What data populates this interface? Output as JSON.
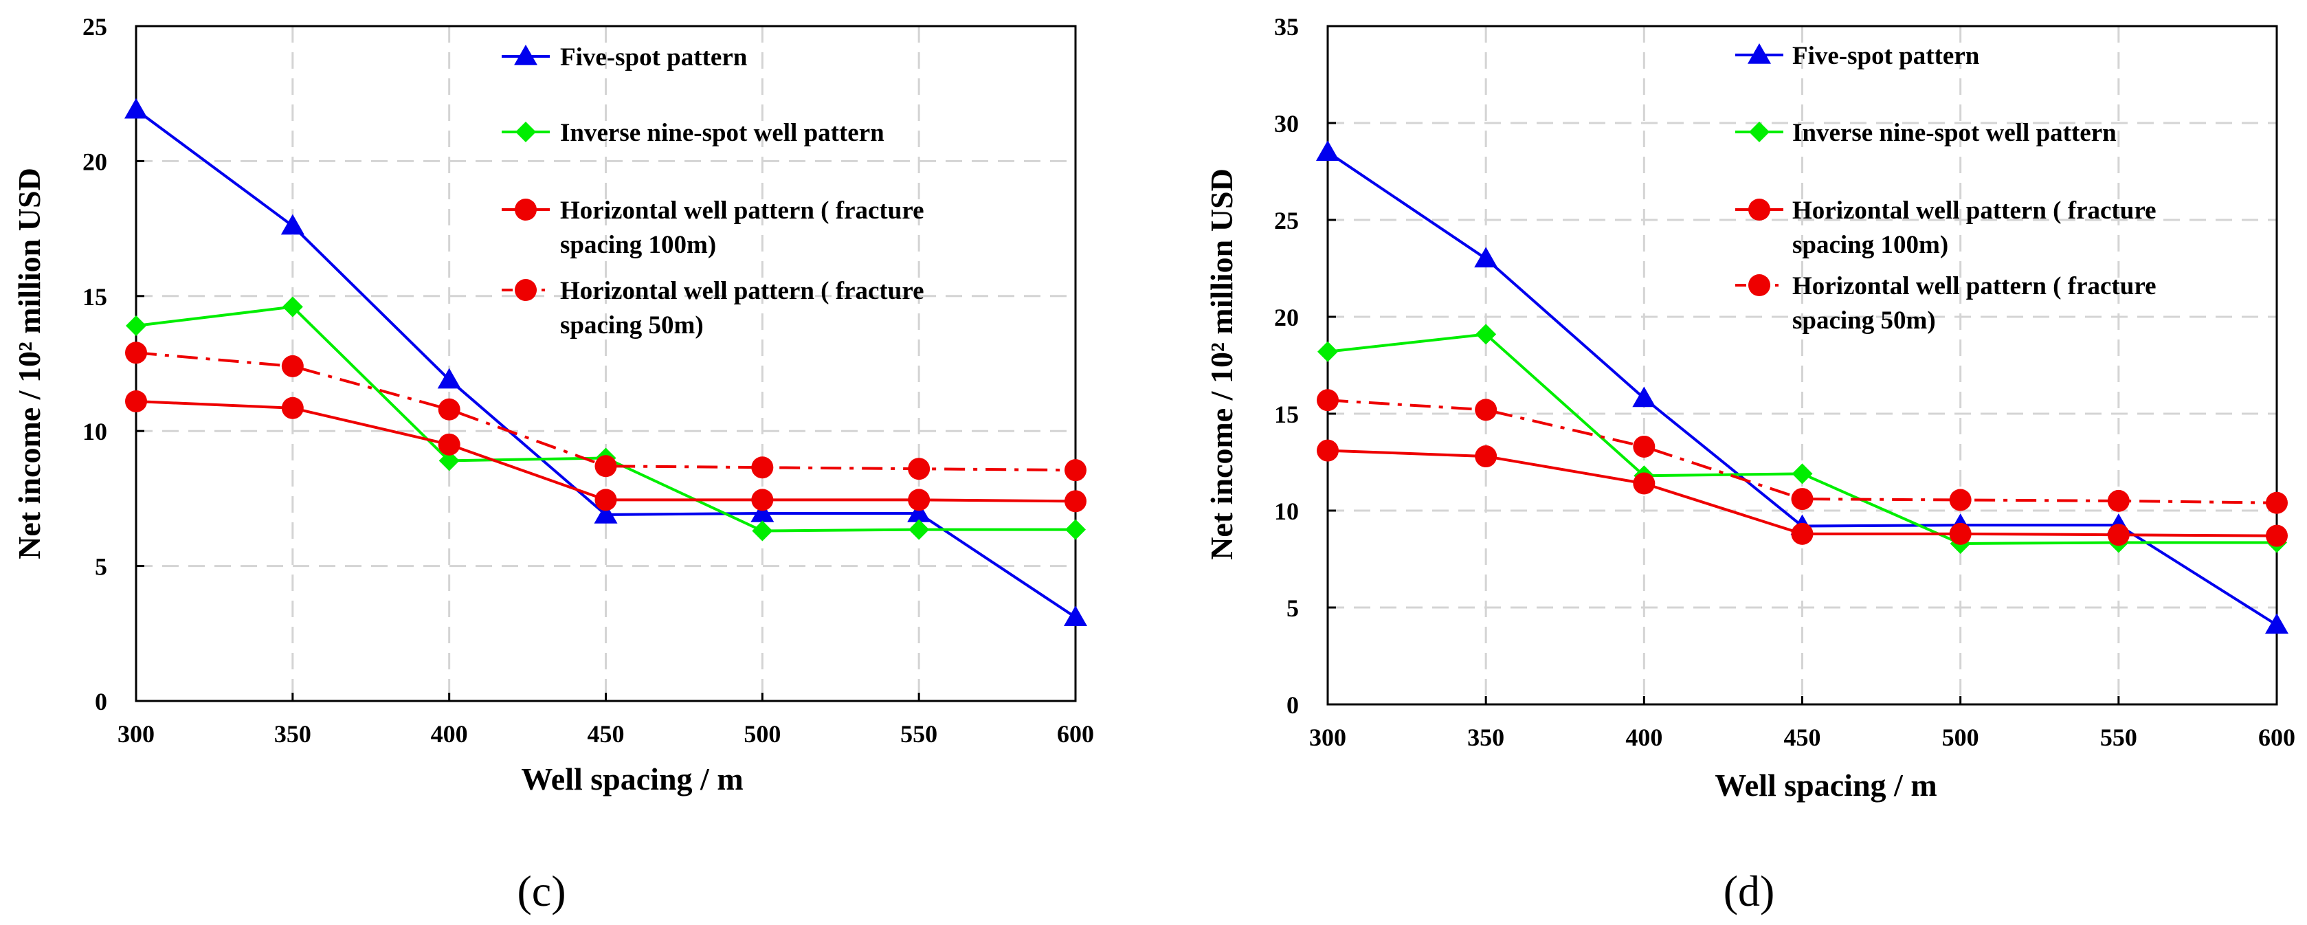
{
  "chart_data": [
    {
      "type": "line",
      "panel_label": "(c)",
      "xlabel": "Well spacing / m",
      "ylabel": "Net income / 10² million USD",
      "x": [
        300,
        350,
        400,
        450,
        500,
        550,
        600
      ],
      "xticks": [
        "300",
        "350",
        "400",
        "450",
        "500",
        "550",
        "600"
      ],
      "yticks": [
        "0",
        "5",
        "10",
        "15",
        "20",
        "25"
      ],
      "ylim": [
        0,
        25
      ],
      "grid": true,
      "legend_position": "top-right",
      "series": [
        {
          "name": "Five-spot pattern",
          "color": "#0000ee",
          "marker": "triangle",
          "dash": "solid",
          "values": [
            21.9,
            17.6,
            11.9,
            6.9,
            6.95,
            6.95,
            3.1
          ]
        },
        {
          "name": "Inverse nine-spot well pattern",
          "color": "#00ee00",
          "marker": "diamond",
          "dash": "solid",
          "values": [
            13.9,
            14.6,
            8.9,
            9.0,
            6.3,
            6.35,
            6.35
          ]
        },
        {
          "name": "Horizontal well pattern ( fracture spacing 100m)",
          "line1": "Horizontal well pattern ( fracture",
          "line2": "spacing 100m)",
          "color": "#ee0000",
          "marker": "circle",
          "dash": "solid",
          "values": [
            11.1,
            10.85,
            9.5,
            7.45,
            7.45,
            7.45,
            7.4
          ]
        },
        {
          "name": "Horizontal well pattern ( fracture spacing 50m)",
          "line1": "Horizontal well pattern ( fracture",
          "line2": "spacing 50m)",
          "color": "#ee0000",
          "marker": "circle",
          "dash": "dashdot",
          "values": [
            12.9,
            12.4,
            10.8,
            8.7,
            8.65,
            8.6,
            8.55
          ]
        }
      ]
    },
    {
      "type": "line",
      "panel_label": "(d)",
      "xlabel": "Well spacing / m",
      "ylabel": "Net income / 10² million USD",
      "x": [
        300,
        350,
        400,
        450,
        500,
        550,
        600
      ],
      "xticks": [
        "300",
        "350",
        "400",
        "450",
        "500",
        "550",
        "600"
      ],
      "yticks": [
        "0",
        "5",
        "10",
        "15",
        "20",
        "25",
        "30",
        "35"
      ],
      "ylim": [
        0,
        35
      ],
      "grid": true,
      "legend_position": "top-right",
      "series": [
        {
          "name": "Five-spot pattern",
          "color": "#0000ee",
          "marker": "triangle",
          "dash": "solid",
          "values": [
            28.5,
            23.0,
            15.8,
            9.2,
            9.25,
            9.25,
            4.1
          ]
        },
        {
          "name": "Inverse nine-spot well pattern",
          "color": "#00ee00",
          "marker": "diamond",
          "dash": "solid",
          "values": [
            18.2,
            19.1,
            11.8,
            11.9,
            8.3,
            8.35,
            8.35
          ]
        },
        {
          "name": "Horizontal well pattern ( fracture spacing 100m)",
          "line1": "Horizontal well pattern ( fracture",
          "line2": "spacing 100m)",
          "color": "#ee0000",
          "marker": "circle",
          "dash": "solid",
          "values": [
            13.1,
            12.8,
            11.4,
            8.8,
            8.8,
            8.75,
            8.7
          ]
        },
        {
          "name": "Horizontal well pattern ( fracture spacing 50m)",
          "line1": "Horizontal well pattern ( fracture",
          "line2": "spacing 50m)",
          "color": "#ee0000",
          "marker": "circle",
          "dash": "dashdot",
          "values": [
            15.7,
            15.2,
            13.3,
            10.6,
            10.55,
            10.5,
            10.4
          ]
        }
      ]
    }
  ]
}
